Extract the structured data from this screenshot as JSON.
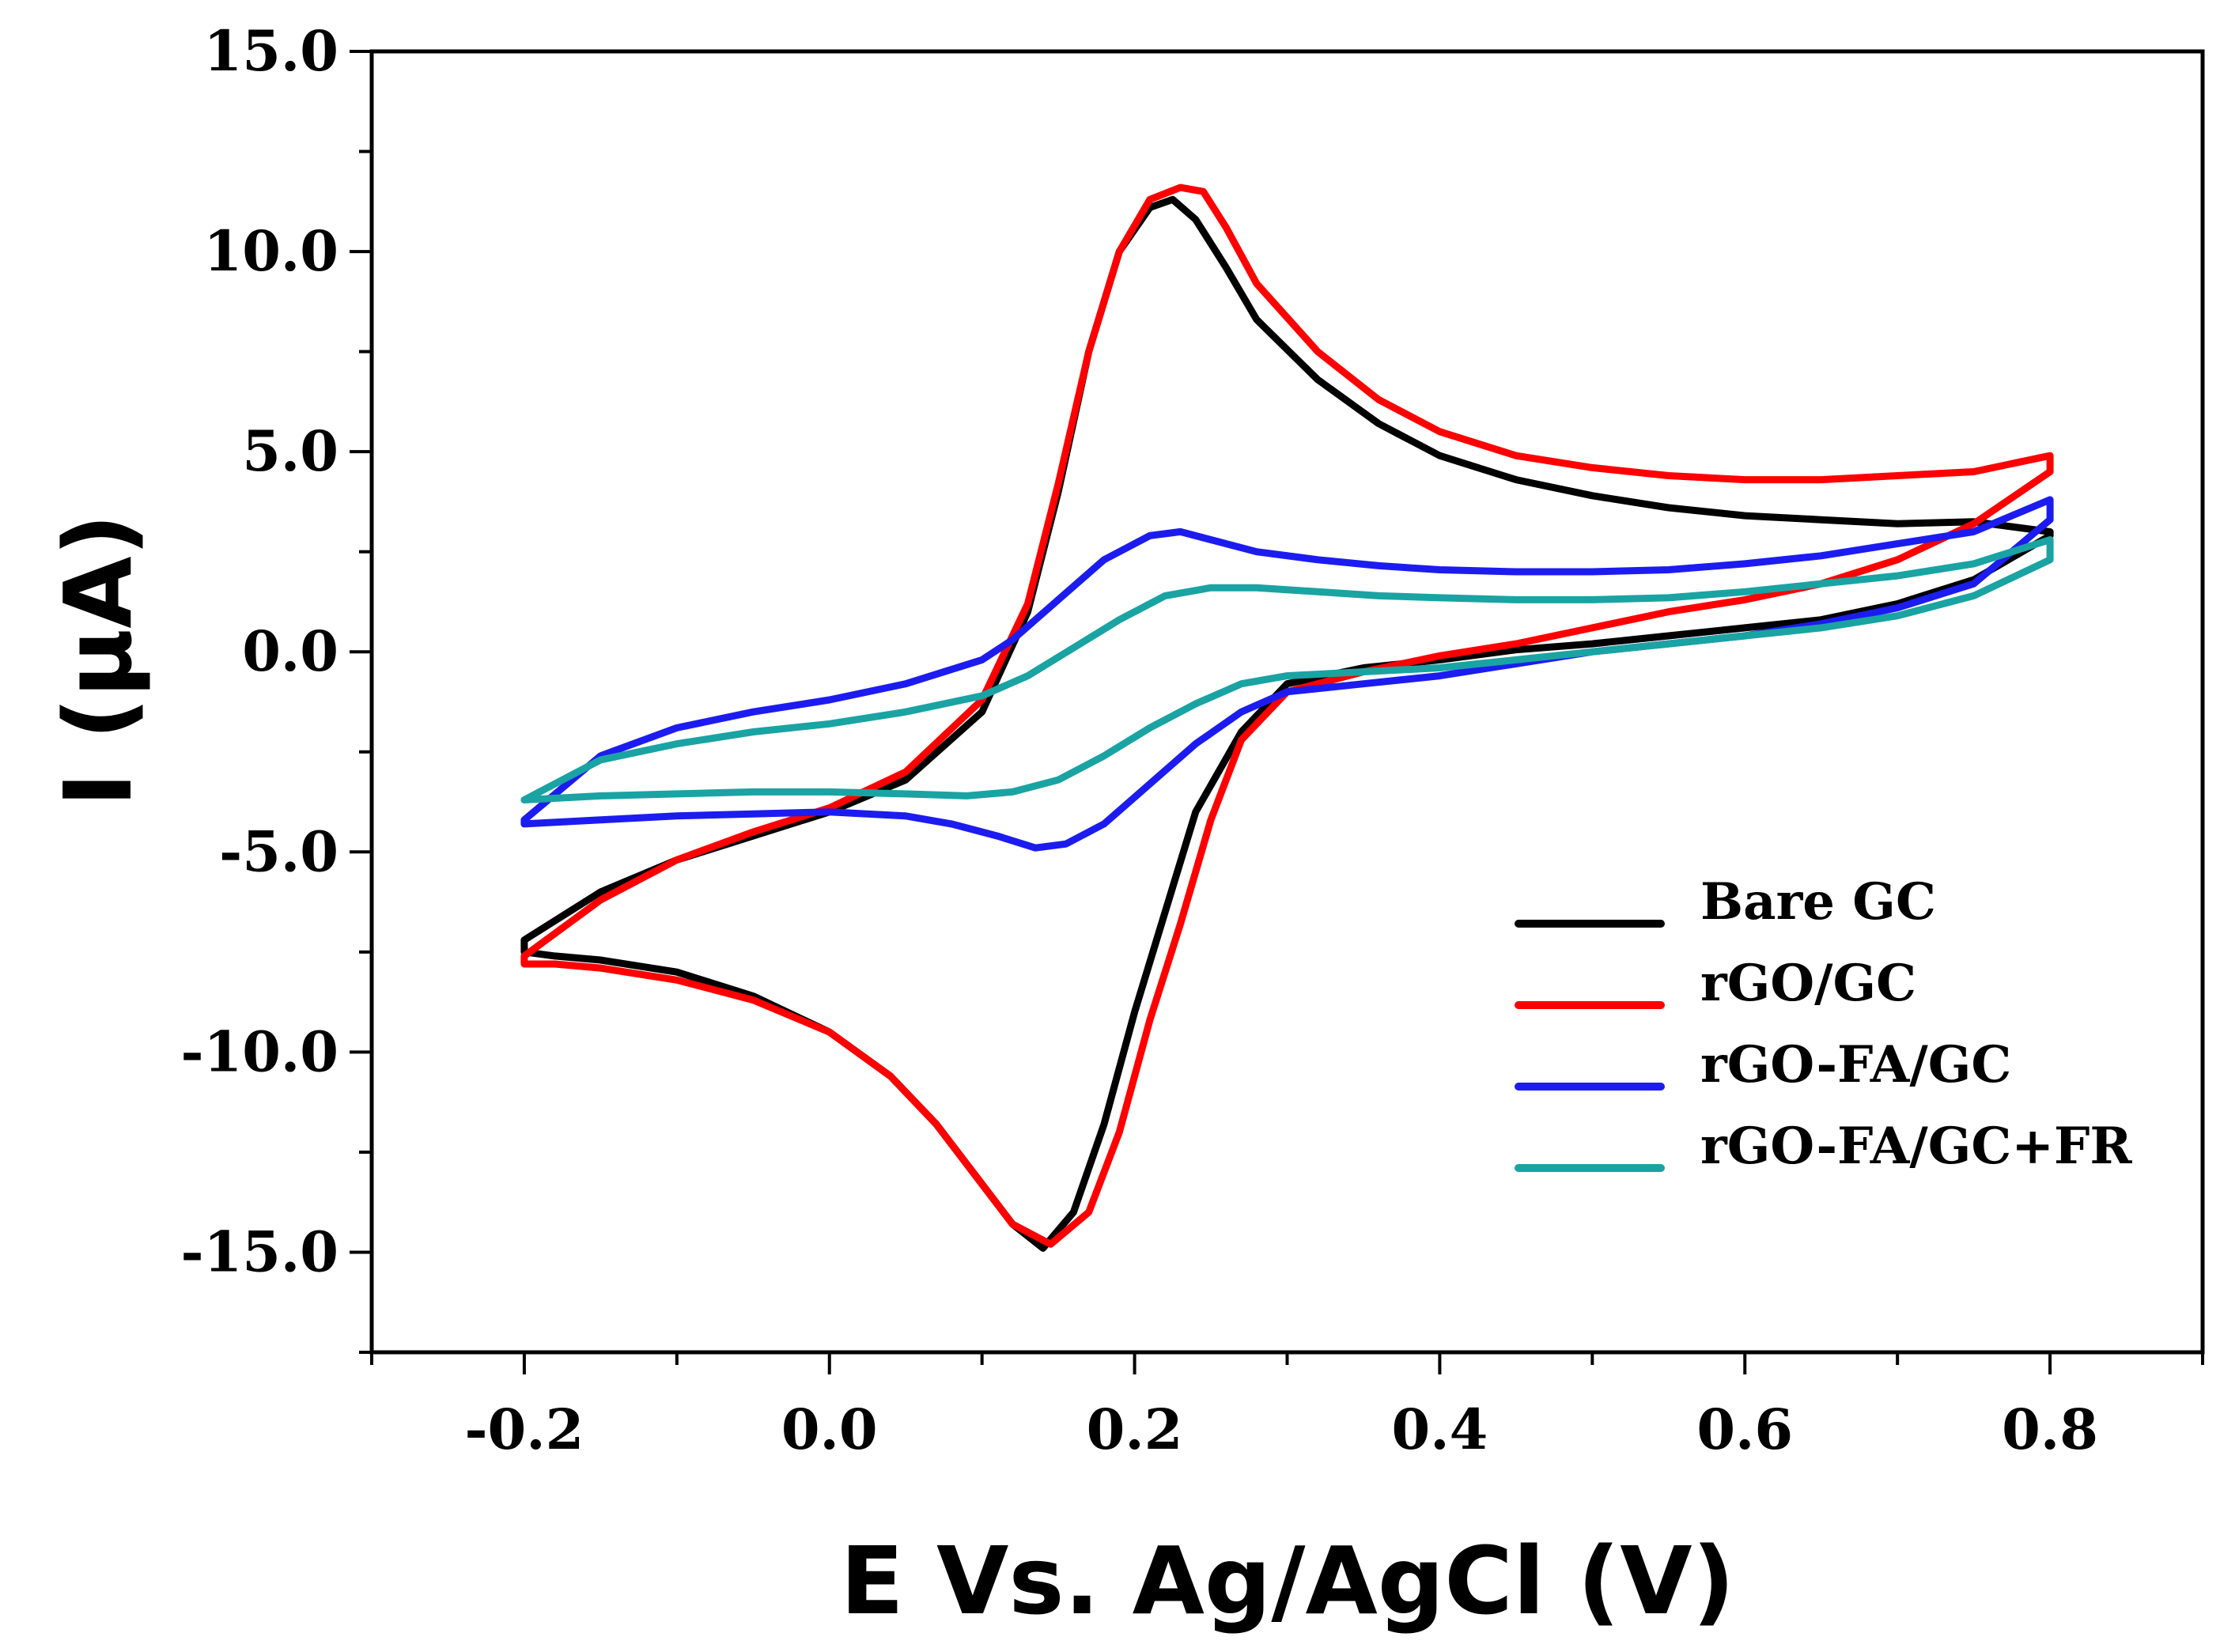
{
  "chart_data": {
    "type": "line",
    "title": "",
    "xlabel": "E Vs. Ag/AgCl (V)",
    "ylabel": "I (μA)",
    "xlim": [
      -0.3,
      0.9
    ],
    "ylim": [
      -17.5,
      15.0
    ],
    "x_ticks": [
      -0.2,
      0.0,
      0.2,
      0.4,
      0.6,
      0.8
    ],
    "x_tick_labels": [
      "-0.2",
      "0.0",
      "0.2",
      "0.4",
      "0.6",
      "0.8"
    ],
    "y_ticks": [
      15.0,
      10.0,
      5.0,
      0.0,
      -5.0,
      -10.0,
      -15.0
    ],
    "y_tick_labels": [
      "15.0",
      "10.0",
      "5.0",
      "0.0",
      "-5.0",
      "-10.0",
      "-15.0"
    ],
    "grid": false,
    "legend_position": "lower-right",
    "series": [
      {
        "name": "Bare GC",
        "color": "#000000",
        "x": [
          -0.2,
          -0.15,
          -0.1,
          -0.05,
          0.0,
          0.05,
          0.1,
          0.13,
          0.15,
          0.17,
          0.19,
          0.21,
          0.225,
          0.24,
          0.26,
          0.28,
          0.32,
          0.36,
          0.4,
          0.45,
          0.5,
          0.55,
          0.6,
          0.65,
          0.7,
          0.75,
          0.8,
          0.8,
          0.75,
          0.7,
          0.65,
          0.6,
          0.55,
          0.5,
          0.45,
          0.4,
          0.35,
          0.3,
          0.27,
          0.24,
          0.22,
          0.2,
          0.18,
          0.16,
          0.14,
          0.12,
          0.1,
          0.07,
          0.04,
          0.0,
          -0.05,
          -0.1,
          -0.15,
          -0.18,
          -0.2,
          -0.2
        ],
        "y": [
          -7.2,
          -6.0,
          -5.2,
          -4.6,
          -4.0,
          -3.2,
          -1.5,
          1.0,
          4.0,
          7.5,
          10.0,
          11.1,
          11.3,
          10.8,
          9.6,
          8.3,
          6.8,
          5.7,
          4.9,
          4.3,
          3.9,
          3.6,
          3.4,
          3.3,
          3.2,
          3.25,
          3.0,
          2.9,
          1.8,
          1.2,
          0.8,
          0.6,
          0.4,
          0.2,
          0.05,
          -0.2,
          -0.4,
          -0.8,
          -2.0,
          -4.0,
          -6.5,
          -9.0,
          -11.8,
          -14.0,
          -14.9,
          -14.3,
          -13.3,
          -11.8,
          -10.6,
          -9.5,
          -8.6,
          -8.0,
          -7.7,
          -7.6,
          -7.5,
          -7.2
        ]
      },
      {
        "name": "rGO/GC",
        "color": "#ff0000",
        "x": [
          -0.2,
          -0.15,
          -0.1,
          -0.05,
          0.0,
          0.05,
          0.1,
          0.13,
          0.15,
          0.17,
          0.19,
          0.21,
          0.23,
          0.245,
          0.26,
          0.28,
          0.32,
          0.36,
          0.4,
          0.45,
          0.5,
          0.55,
          0.6,
          0.65,
          0.7,
          0.75,
          0.8,
          0.8,
          0.75,
          0.7,
          0.65,
          0.6,
          0.55,
          0.5,
          0.45,
          0.4,
          0.35,
          0.3,
          0.27,
          0.25,
          0.23,
          0.21,
          0.19,
          0.17,
          0.145,
          0.12,
          0.1,
          0.07,
          0.04,
          0.0,
          -0.05,
          -0.1,
          -0.15,
          -0.18,
          -0.2,
          -0.2
        ],
        "y": [
          -7.6,
          -6.2,
          -5.2,
          -4.5,
          -3.9,
          -3.0,
          -1.2,
          1.2,
          4.2,
          7.5,
          10.0,
          11.3,
          11.6,
          11.5,
          10.6,
          9.2,
          7.5,
          6.3,
          5.5,
          4.9,
          4.6,
          4.4,
          4.3,
          4.3,
          4.4,
          4.5,
          4.9,
          4.5,
          3.2,
          2.3,
          1.7,
          1.3,
          1.0,
          0.6,
          0.2,
          -0.1,
          -0.5,
          -1.0,
          -2.2,
          -4.2,
          -6.8,
          -9.2,
          -12.0,
          -14.0,
          -14.8,
          -14.3,
          -13.3,
          -11.8,
          -10.6,
          -9.5,
          -8.7,
          -8.2,
          -7.9,
          -7.8,
          -7.8,
          -7.6
        ]
      },
      {
        "name": "rGO-FA/GC",
        "color": "#1c1cf0",
        "x": [
          -0.2,
          -0.15,
          -0.1,
          -0.05,
          0.0,
          0.05,
          0.1,
          0.12,
          0.15,
          0.18,
          0.21,
          0.23,
          0.25,
          0.28,
          0.32,
          0.36,
          0.4,
          0.45,
          0.5,
          0.55,
          0.6,
          0.65,
          0.7,
          0.75,
          0.8,
          0.8,
          0.75,
          0.7,
          0.65,
          0.6,
          0.55,
          0.5,
          0.45,
          0.4,
          0.35,
          0.3,
          0.27,
          0.24,
          0.21,
          0.18,
          0.155,
          0.135,
          0.11,
          0.08,
          0.05,
          0.0,
          -0.05,
          -0.1,
          -0.15,
          -0.2,
          -0.2
        ],
        "y": [
          -4.2,
          -2.6,
          -1.9,
          -1.5,
          -1.2,
          -0.8,
          -0.2,
          0.3,
          1.3,
          2.3,
          2.9,
          3.0,
          2.8,
          2.5,
          2.3,
          2.15,
          2.05,
          2.0,
          2.0,
          2.05,
          2.2,
          2.4,
          2.7,
          3.0,
          3.8,
          3.3,
          1.7,
          1.1,
          0.7,
          0.4,
          0.2,
          0.0,
          -0.3,
          -0.6,
          -0.8,
          -1.0,
          -1.5,
          -2.3,
          -3.3,
          -4.3,
          -4.8,
          -4.9,
          -4.6,
          -4.3,
          -4.1,
          -4.0,
          -4.05,
          -4.1,
          -4.2,
          -4.3,
          -4.2
        ]
      },
      {
        "name": "rGO-FA/GC+FR",
        "color": "#1aa3a3",
        "x": [
          -0.2,
          -0.15,
          -0.1,
          -0.05,
          0.0,
          0.05,
          0.1,
          0.13,
          0.16,
          0.19,
          0.22,
          0.25,
          0.28,
          0.32,
          0.36,
          0.4,
          0.45,
          0.5,
          0.55,
          0.6,
          0.65,
          0.7,
          0.75,
          0.8,
          0.8,
          0.75,
          0.7,
          0.65,
          0.6,
          0.55,
          0.5,
          0.45,
          0.4,
          0.35,
          0.3,
          0.27,
          0.24,
          0.21,
          0.18,
          0.15,
          0.12,
          0.09,
          0.05,
          0.0,
          -0.05,
          -0.1,
          -0.15,
          -0.2,
          -0.2
        ],
        "y": [
          -3.7,
          -2.7,
          -2.3,
          -2.0,
          -1.8,
          -1.5,
          -1.1,
          -0.6,
          0.1,
          0.8,
          1.4,
          1.6,
          1.6,
          1.5,
          1.4,
          1.35,
          1.3,
          1.3,
          1.35,
          1.5,
          1.7,
          1.9,
          2.2,
          2.8,
          2.3,
          1.4,
          0.9,
          0.6,
          0.4,
          0.2,
          0.0,
          -0.2,
          -0.4,
          -0.5,
          -0.6,
          -0.8,
          -1.3,
          -1.9,
          -2.6,
          -3.2,
          -3.5,
          -3.6,
          -3.55,
          -3.5,
          -3.5,
          -3.55,
          -3.6,
          -3.7,
          -3.7
        ]
      }
    ]
  }
}
